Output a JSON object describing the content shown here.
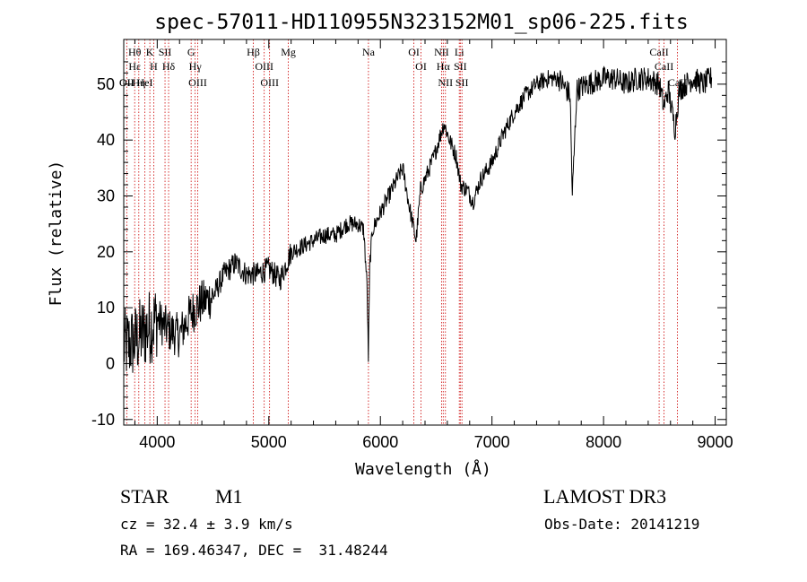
{
  "chart_data": {
    "type": "line",
    "title": "spec-57011-HD110955N323152M01_sp06-225.fits",
    "xlabel": "Wavelength (Å)",
    "ylabel": "Flux (relative)",
    "xlim": [
      3700,
      9100
    ],
    "ylim": [
      -11,
      58
    ],
    "xticks": [
      4000,
      5000,
      6000,
      7000,
      8000,
      9000
    ],
    "yticks": [
      -10,
      0,
      10,
      20,
      30,
      40,
      50
    ],
    "series": [
      {
        "name": "flux",
        "anchors": [
          [
            3700,
            3
          ],
          [
            3800,
            4
          ],
          [
            3900,
            6
          ],
          [
            4000,
            8
          ],
          [
            4100,
            6
          ],
          [
            4200,
            5
          ],
          [
            4300,
            9
          ],
          [
            4400,
            11
          ],
          [
            4500,
            12
          ],
          [
            4600,
            16
          ],
          [
            4700,
            18
          ],
          [
            4800,
            16
          ],
          [
            4900,
            16
          ],
          [
            5000,
            17
          ],
          [
            5100,
            15
          ],
          [
            5200,
            20
          ],
          [
            5300,
            21
          ],
          [
            5400,
            22
          ],
          [
            5500,
            23
          ],
          [
            5600,
            23
          ],
          [
            5700,
            25
          ],
          [
            5800,
            25
          ],
          [
            5850,
            24
          ],
          [
            5880,
            14
          ],
          [
            5892,
            1
          ],
          [
            5905,
            18
          ],
          [
            5930,
            24
          ],
          [
            6000,
            27
          ],
          [
            6100,
            31
          ],
          [
            6200,
            35
          ],
          [
            6260,
            28
          ],
          [
            6300,
            24
          ],
          [
            6320,
            22
          ],
          [
            6360,
            31
          ],
          [
            6420,
            34
          ],
          [
            6480,
            37
          ],
          [
            6540,
            41
          ],
          [
            6570,
            43
          ],
          [
            6620,
            40
          ],
          [
            6680,
            37
          ],
          [
            6720,
            32
          ],
          [
            6780,
            31
          ],
          [
            6830,
            29
          ],
          [
            6900,
            33
          ],
          [
            7000,
            36
          ],
          [
            7100,
            41
          ],
          [
            7200,
            45
          ],
          [
            7300,
            48
          ],
          [
            7400,
            50
          ],
          [
            7500,
            51
          ],
          [
            7600,
            51
          ],
          [
            7700,
            48
          ],
          [
            7720,
            30
          ],
          [
            7760,
            49
          ],
          [
            7850,
            50
          ],
          [
            8000,
            51
          ],
          [
            8100,
            51
          ],
          [
            8200,
            50
          ],
          [
            8300,
            51
          ],
          [
            8400,
            51
          ],
          [
            8500,
            50
          ],
          [
            8540,
            46
          ],
          [
            8580,
            49
          ],
          [
            8640,
            42
          ],
          [
            8680,
            49
          ],
          [
            8800,
            51
          ],
          [
            8900,
            50
          ],
          [
            8950,
            51
          ]
        ]
      }
    ],
    "spectral_lines": [
      {
        "wl": 3727,
        "labels": [
          "OII",
          "OII"
        ]
      },
      {
        "wl": 3798,
        "labels": [
          "Hθ",
          "Hε"
        ]
      },
      {
        "wl": 3835,
        "labels": [
          "Hη"
        ]
      },
      {
        "wl": 3889,
        "labels": [
          "HeI"
        ]
      },
      {
        "wl": 3934,
        "labels": [
          "K"
        ]
      },
      {
        "wl": 3969,
        "labels": [
          "H"
        ]
      },
      {
        "wl": 4070,
        "labels": [
          "SII"
        ]
      },
      {
        "wl": 4102,
        "labels": [
          "Hδ"
        ]
      },
      {
        "wl": 4304,
        "labels": [
          "G"
        ]
      },
      {
        "wl": 4340,
        "labels": [
          "Hγ"
        ]
      },
      {
        "wl": 4363,
        "labels": [
          "OIII"
        ]
      },
      {
        "wl": 4861,
        "labels": [
          "Hβ"
        ]
      },
      {
        "wl": 4959,
        "labels": [
          "OIII"
        ]
      },
      {
        "wl": 5007,
        "labels": [
          "OIII"
        ]
      },
      {
        "wl": 5175,
        "labels": [
          "Mg"
        ]
      },
      {
        "wl": 5893,
        "labels": [
          "Na"
        ]
      },
      {
        "wl": 6300,
        "labels": [
          "OI"
        ]
      },
      {
        "wl": 6364,
        "labels": [
          "OI"
        ]
      },
      {
        "wl": 6548,
        "labels": [
          "NII"
        ]
      },
      {
        "wl": 6563,
        "labels": [
          "Hα"
        ]
      },
      {
        "wl": 6583,
        "labels": [
          "NII"
        ]
      },
      {
        "wl": 6707,
        "labels": [
          "Li"
        ]
      },
      {
        "wl": 6716,
        "labels": [
          "SII"
        ]
      },
      {
        "wl": 6731,
        "labels": [
          "SII"
        ]
      },
      {
        "wl": 8498,
        "labels": [
          "CaII"
        ]
      },
      {
        "wl": 8542,
        "labels": [
          "CaII"
        ]
      },
      {
        "wl": 8662,
        "labels": [
          "CaII"
        ]
      }
    ]
  },
  "info": {
    "object_type": "STAR",
    "subclass": "M1",
    "survey": "LAMOST DR3",
    "cz": "cz = 32.4 ± 3.9 km/s",
    "obs_date": "Obs-Date: 20141219",
    "coords": "RA = 169.46347, DEC =  31.48244"
  }
}
